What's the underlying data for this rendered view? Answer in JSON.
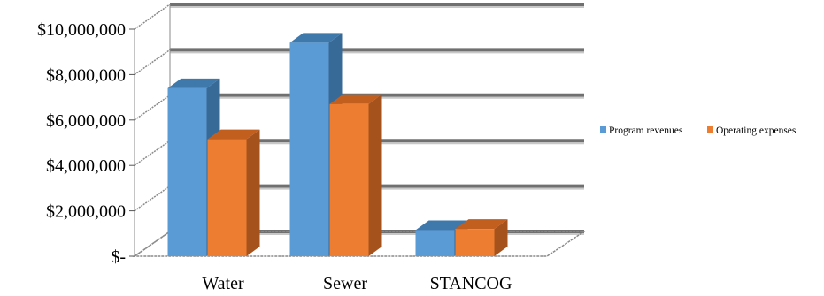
{
  "chart_data": {
    "type": "bar",
    "categories": [
      "Water",
      "Sewer",
      "STANCOG"
    ],
    "series": [
      {
        "name": "Program revenues",
        "values": [
          7400000,
          9400000,
          1150000
        ]
      },
      {
        "name": "Operating expenses",
        "values": [
          5150000,
          6700000,
          1200000
        ]
      }
    ],
    "ylim": [
      0,
      10000000
    ],
    "yticks": [
      0,
      2000000,
      4000000,
      6000000,
      8000000,
      10000000
    ],
    "ytick_labels": [
      "$-",
      "$2,000,000",
      "$4,000,000",
      "$6,000,000",
      "$8,000,000",
      "$10,000,000"
    ],
    "title": "",
    "xlabel": "",
    "ylabel": "",
    "grid": true,
    "legend_position": "right",
    "style": "3d-clustered-column"
  },
  "colors": {
    "series": [
      "#5b9bd5",
      "#ed7d31"
    ],
    "series_top": [
      "#3f79ac",
      "#c25f1f"
    ],
    "series_side": [
      "#386a98",
      "#a5521d"
    ],
    "grid_dark": "#707070",
    "grid_light": "#c8c8c8"
  }
}
